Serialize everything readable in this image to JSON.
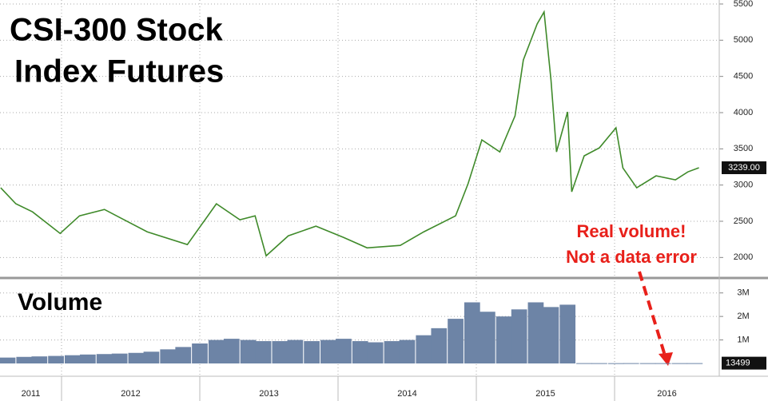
{
  "chart_data": [
    {
      "type": "line",
      "title": [
        "CSI-300 Stock",
        "Index Futures"
      ],
      "x": [
        2011.56,
        2011.67,
        2011.79,
        2011.99,
        2012.13,
        2012.31,
        2012.42,
        2012.62,
        2012.91,
        2013.12,
        2013.29,
        2013.4,
        2013.48,
        2013.64,
        2013.84,
        2014.04,
        2014.21,
        2014.45,
        2014.62,
        2014.85,
        2014.94,
        2015.04,
        2015.17,
        2015.28,
        2015.34,
        2015.44,
        2015.49,
        2015.54,
        2015.58,
        2015.66,
        2015.69,
        2015.78,
        2015.89,
        2016.01,
        2016.06,
        2016.16,
        2016.3,
        2016.44,
        2016.53,
        2016.61
      ],
      "series": [
        {
          "color": "#3f8a2a",
          "values": [
            2962,
            2741,
            2630,
            2332,
            2575,
            2663,
            2553,
            2354,
            2178,
            2741,
            2520,
            2575,
            2023,
            2299,
            2432,
            2277,
            2133,
            2167,
            2354,
            2575,
            3017,
            3624,
            3458,
            3955,
            4727,
            5224,
            5390,
            4451,
            3458,
            4010,
            2907,
            3403,
            3514,
            3790,
            3237,
            2962,
            3127,
            3072,
            3182,
            3239
          ]
        }
      ],
      "last_value": {
        "value": 3239,
        "label": "3239.00"
      },
      "xlim": [
        2011.555,
        2016.757
      ],
      "xticks": [
        2011,
        2012,
        2013,
        2014,
        2015,
        2016
      ],
      "ylim": [
        1750,
        5555
      ],
      "yticks": [
        2000,
        2500,
        3000,
        3500,
        4000,
        4500,
        5000,
        5500
      ],
      "grid": true,
      "annotation": [
        "Real volume!",
        "Not a data error"
      ],
      "annotation_color": "#e8201a"
    },
    {
      "type": "bar",
      "title": "Volume",
      "x": [
        2011.61,
        2011.73,
        2011.84,
        2011.96,
        2012.08,
        2012.19,
        2012.31,
        2012.42,
        2012.54,
        2012.65,
        2012.77,
        2012.88,
        2013.0,
        2013.12,
        2013.23,
        2013.35,
        2013.46,
        2013.58,
        2013.69,
        2013.81,
        2013.93,
        2014.04,
        2014.16,
        2014.27,
        2014.39,
        2014.5,
        2014.62,
        2014.73,
        2014.85,
        2014.97,
        2015.08,
        2015.2,
        2015.31,
        2015.43,
        2015.54,
        2015.66,
        2015.78,
        2015.89,
        2016.01,
        2016.12,
        2016.24,
        2016.35,
        2016.47,
        2016.58
      ],
      "values": [
        250000,
        280000,
        300000,
        320000,
        350000,
        380000,
        400000,
        420000,
        450000,
        500000,
        600000,
        700000,
        850000,
        1000000,
        1050000,
        1000000,
        950000,
        950000,
        1000000,
        950000,
        1000000,
        1050000,
        950000,
        900000,
        950000,
        1000000,
        1200000,
        1500000,
        1900000,
        2600000,
        2200000,
        2000000,
        2300000,
        2600000,
        2400000,
        2500000,
        14000,
        13000,
        12000,
        14000,
        13000,
        13000,
        13000,
        13499
      ],
      "color": "#6d84a6",
      "last_value": 13499,
      "ylim": [
        0,
        3500000
      ],
      "yticks": [
        {
          "value": 1000000,
          "label": "1M"
        },
        {
          "value": 2000000,
          "label": "2M"
        },
        {
          "value": 3000000,
          "label": "3M"
        }
      ],
      "grid": true
    }
  ]
}
